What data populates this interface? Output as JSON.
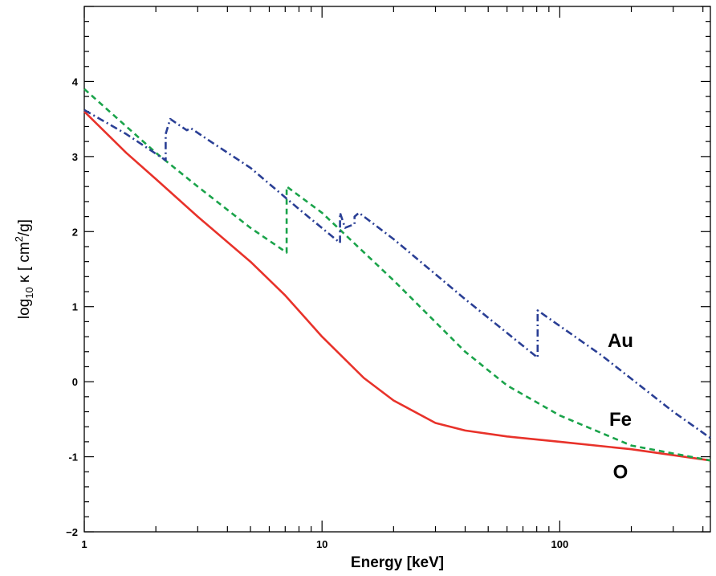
{
  "chart_data": {
    "type": "line",
    "xlabel": "Energy [keV]",
    "ylabel": {
      "prefix": "log",
      "sub": "10",
      "mid": " κ [ cm",
      "sup": "2",
      "suffix": "/g]"
    },
    "xscale": "log",
    "xlim": [
      1,
      430
    ],
    "ylim": [
      -2,
      5
    ],
    "xticks": [
      {
        "value": 1,
        "label": "1"
      },
      {
        "value": 10,
        "label": "10"
      },
      {
        "value": 100,
        "label": "100"
      }
    ],
    "yticks": [
      {
        "value": -2,
        "label": "−2"
      },
      {
        "value": -1,
        "label": "-1"
      },
      {
        "value": 0,
        "label": "0"
      },
      {
        "value": 1,
        "label": "1"
      },
      {
        "value": 2,
        "label": "2"
      },
      {
        "value": 3,
        "label": "3"
      },
      {
        "value": 4,
        "label": "4"
      }
    ],
    "grid": false,
    "legend": "none",
    "series": [
      {
        "name": "O",
        "color": "#e8322a",
        "linestyle": "solid",
        "label_x": 180,
        "label_y": -1.2,
        "x": [
          1,
          1.5,
          2,
          3,
          5,
          7,
          10,
          15,
          20,
          30,
          40,
          60,
          100,
          200,
          430
        ],
        "y": [
          3.6,
          3.05,
          2.7,
          2.2,
          1.6,
          1.15,
          0.6,
          0.05,
          -0.25,
          -0.55,
          -0.65,
          -0.73,
          -0.8,
          -0.9,
          -1.05
        ]
      },
      {
        "name": "Fe",
        "color": "#1aa34a",
        "linestyle": "dashed",
        "label_x": 180,
        "label_y": -0.5,
        "x": [
          1,
          2,
          3,
          5,
          7.1,
          7.1,
          10,
          20,
          40,
          60,
          100,
          200,
          430
        ],
        "y": [
          3.9,
          3.05,
          2.6,
          2.05,
          1.72,
          2.6,
          2.25,
          1.35,
          0.4,
          -0.05,
          -0.45,
          -0.85,
          -1.05
        ]
      },
      {
        "name": "Au",
        "color": "#2a3f95",
        "linestyle": "dashdot",
        "label_x": 180,
        "label_y": 0.55,
        "x": [
          1,
          1.5,
          2.2,
          2.2,
          2.3,
          2.7,
          2.8,
          3.4,
          5,
          8,
          11.9,
          11.9,
          12.5,
          13.7,
          13.7,
          14.3,
          20,
          40,
          80.7,
          80.7,
          150,
          300,
          430
        ],
        "y": [
          3.62,
          3.3,
          2.95,
          3.3,
          3.5,
          3.35,
          3.38,
          3.2,
          2.85,
          2.3,
          1.85,
          2.25,
          2.05,
          2.1,
          2.2,
          2.25,
          1.9,
          1.1,
          0.32,
          0.95,
          0.35,
          -0.4,
          -0.75
        ]
      }
    ]
  }
}
